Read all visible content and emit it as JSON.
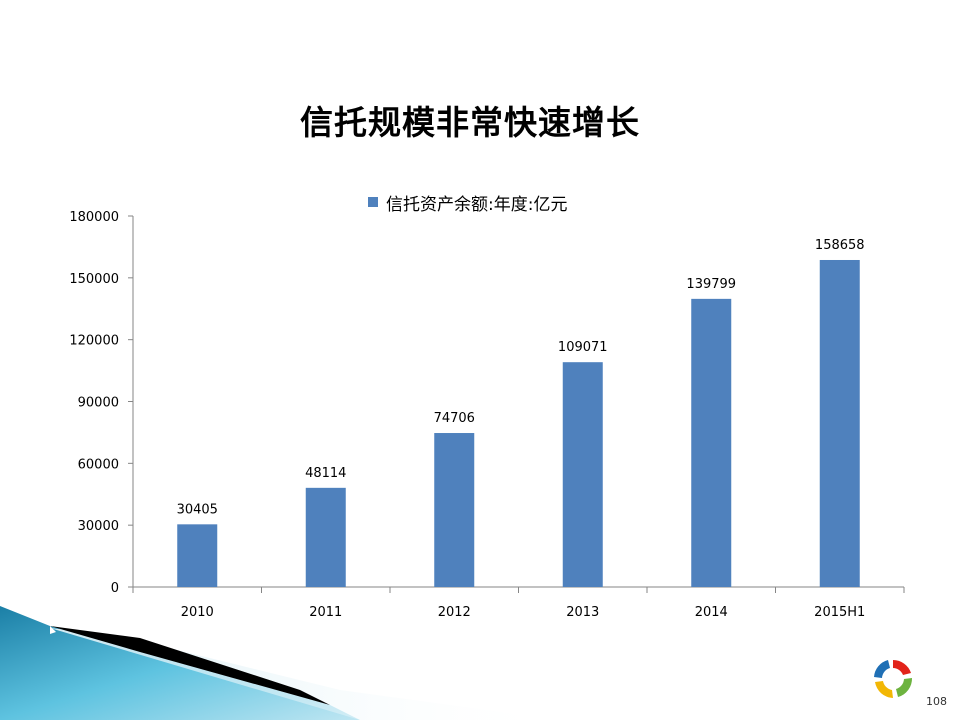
{
  "slide": {
    "title": "信托规模非常快速增长",
    "page_number": "108"
  },
  "colors": {
    "bar": "#4F81BD",
    "accent_teal": "#2E9FC4",
    "logo_red": "#E2231A",
    "logo_green": "#6DB33F",
    "logo_blue": "#1F6FB5"
  },
  "chart_data": {
    "type": "bar",
    "title": "",
    "legend": [
      "信托资产余额:年度:亿元"
    ],
    "legend_position": "top",
    "categories": [
      "2010",
      "2011",
      "2012",
      "2013",
      "2014",
      "2015H1"
    ],
    "series": [
      {
        "name": "信托资产余额:年度:亿元",
        "values": [
          30405,
          48114,
          74706,
          109071,
          139799,
          158658
        ]
      }
    ],
    "yticks": [
      "0",
      "30000",
      "60000",
      "90000",
      "120000",
      "150000",
      "180000"
    ],
    "ylim": [
      0,
      180000
    ],
    "grid": false,
    "data_labels": true
  }
}
